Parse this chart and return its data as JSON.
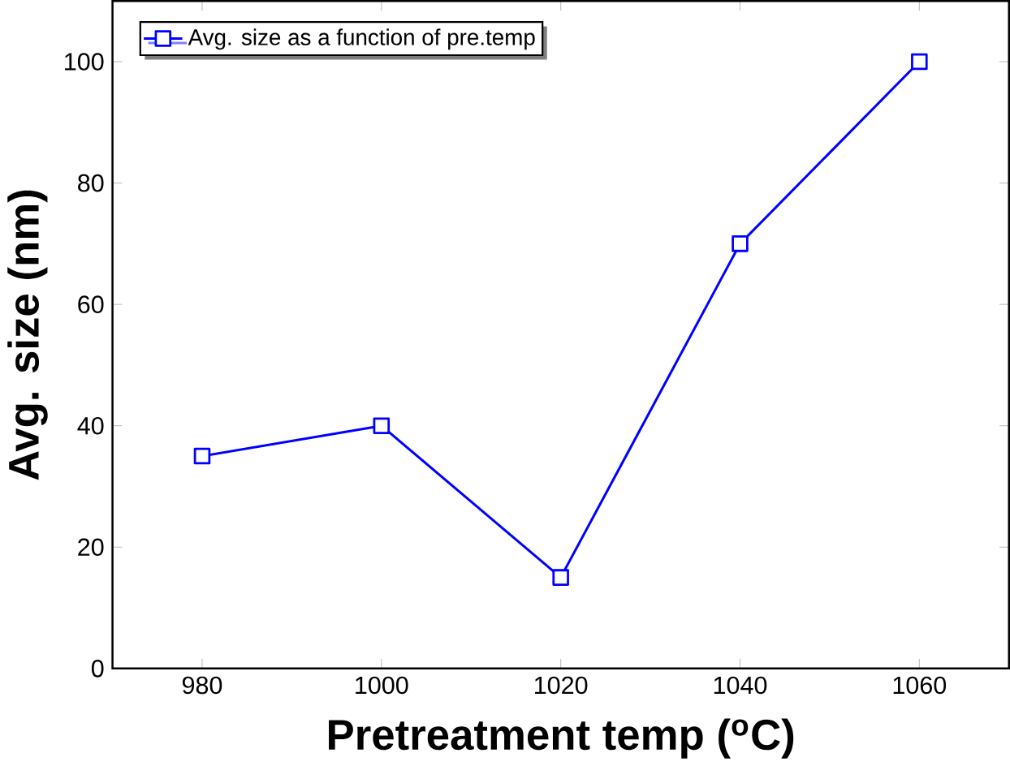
{
  "chart_data": {
    "type": "line",
    "xlabel": "Pretreatment temp ($^{o}$C)",
    "ylabel": "Avg. size (nm)",
    "x": [
      980,
      1000,
      1020,
      1040,
      1060
    ],
    "series": [
      {
        "name": "Avg. size as a function of pre.temp",
        "color": "#0000ff",
        "values": [
          35,
          40,
          15,
          70,
          100
        ]
      }
    ],
    "xlim": [
      970,
      1070
    ],
    "ylim": [
      0,
      110
    ],
    "xticks": [
      980,
      1000,
      1020,
      1040,
      1060
    ],
    "yticks": [
      0,
      20,
      40,
      60,
      80,
      100
    ],
    "legend": "top left",
    "marker": "square",
    "line_style": "solid",
    "grid": false
  }
}
